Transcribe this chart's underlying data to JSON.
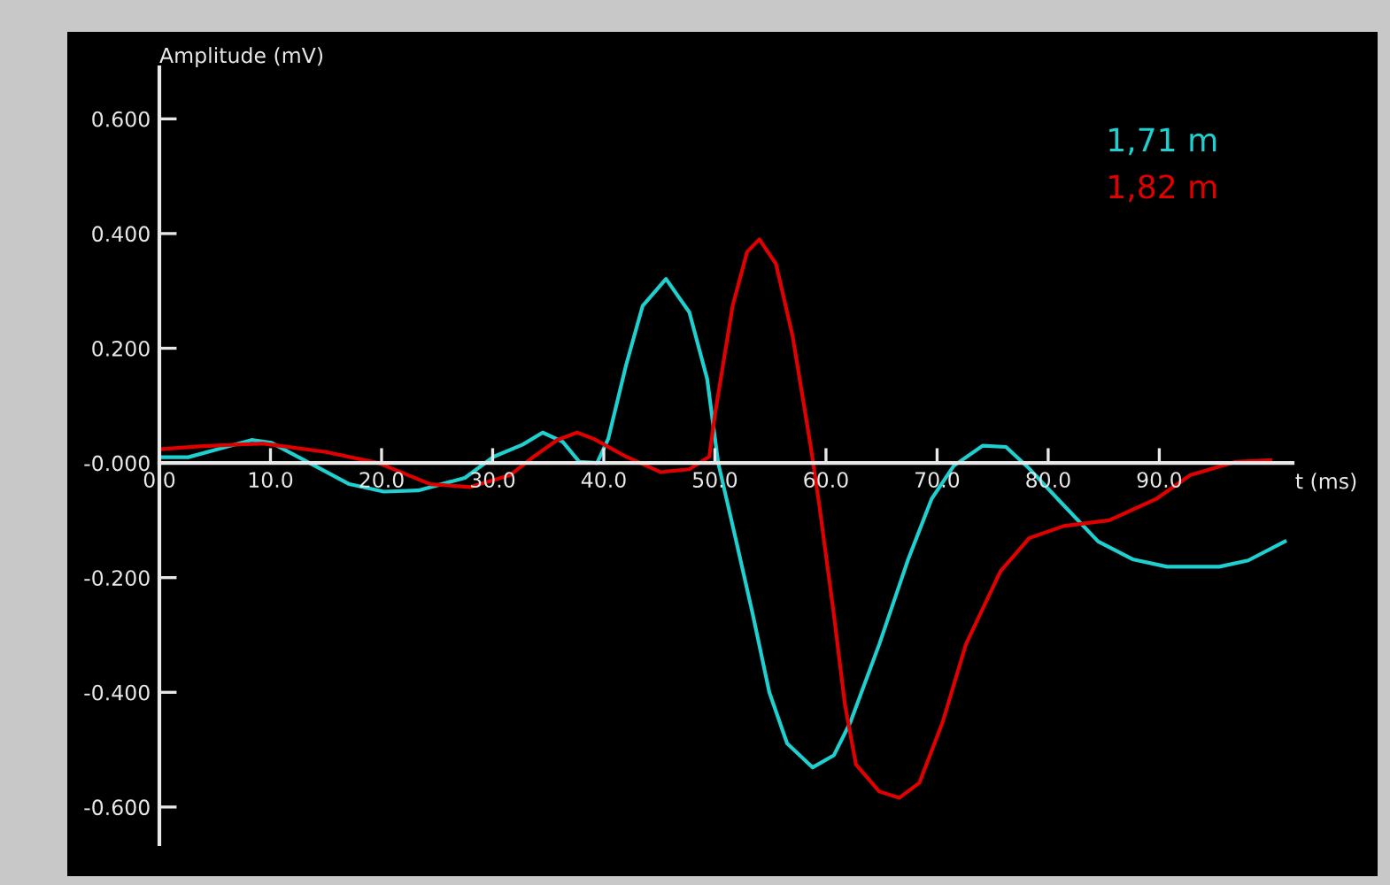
{
  "chart_data": {
    "type": "line",
    "ylabel": "Amplitude (mV)",
    "xlabel": "t (ms)",
    "xlim": [
      0,
      102
    ],
    "ylim": [
      -0.665,
      0.69
    ],
    "xticks": [
      {
        "value": 0,
        "label": "0.0"
      },
      {
        "value": 10,
        "label": "10.0"
      },
      {
        "value": 20,
        "label": "20.0"
      },
      {
        "value": 30,
        "label": "30.0"
      },
      {
        "value": 40,
        "label": "40.0"
      },
      {
        "value": 50,
        "label": "50.0"
      },
      {
        "value": 60,
        "label": "60.0"
      },
      {
        "value": 70,
        "label": "70.0"
      },
      {
        "value": 80,
        "label": "80.0"
      },
      {
        "value": 90,
        "label": "90.0"
      }
    ],
    "yticks": [
      {
        "value": 0.6,
        "label": "0.600"
      },
      {
        "value": 0.4,
        "label": "0.400"
      },
      {
        "value": 0.2,
        "label": "0.200"
      },
      {
        "value": 0,
        "label": "-0.000"
      },
      {
        "value": -0.2,
        "label": "-0.200"
      },
      {
        "value": -0.4,
        "label": "-0.400"
      },
      {
        "value": -0.6,
        "label": "-0.600"
      }
    ],
    "grid": false,
    "legend": "top right",
    "marker": "none",
    "line_style": "solid",
    "series": [
      {
        "name": "1,71 m",
        "color": "#1fd0d0",
        "x": [
          0,
          2.6,
          8.3,
          10.1,
          14,
          17.1,
          20.2,
          23.3,
          27.5,
          30.1,
          32.7,
          34.5,
          36.3,
          37.8,
          39.4,
          40.4,
          42.0,
          43.5,
          45.6,
          47.7,
          49.3,
          50.3,
          51.8,
          53.4,
          54.9,
          56.5,
          58.8,
          60.7,
          62.2,
          64.8,
          67.4,
          69.5,
          71.5,
          74.1,
          76.2,
          78.3,
          81.4,
          84.5,
          87.6,
          90.7,
          95.4,
          98.0,
          101.3
        ],
        "values": [
          0.01,
          0.01,
          0.04,
          0.035,
          -0.005,
          -0.037,
          -0.05,
          -0.048,
          -0.026,
          0.011,
          0.032,
          0.053,
          0.037,
          0.002,
          0.0,
          0.042,
          0.17,
          0.274,
          0.321,
          0.263,
          0.147,
          0.0,
          -0.126,
          -0.263,
          -0.4,
          -0.489,
          -0.531,
          -0.51,
          -0.452,
          -0.316,
          -0.168,
          -0.063,
          -0.005,
          0.03,
          0.028,
          -0.01,
          -0.074,
          -0.137,
          -0.168,
          -0.181,
          -0.181,
          -0.17,
          -0.137
        ]
      },
      {
        "name": "1,82 m",
        "color": "#e00000",
        "x": [
          0,
          3.6,
          9.3,
          15,
          19.7,
          24.4,
          28,
          31.6,
          33.7,
          35.8,
          37.6,
          39.1,
          42,
          45.1,
          47.7,
          49.5,
          50.0,
          51.6,
          52.9,
          54.0,
          55.5,
          57.0,
          58.6,
          59.4,
          60.7,
          61.7,
          62.7,
          64.8,
          66.6,
          68.4,
          70.5,
          72.6,
          75.7,
          78.3,
          81.4,
          85.5,
          89.7,
          92.8,
          96.9,
          100.0
        ],
        "values": [
          0.024,
          0.029,
          0.034,
          0.019,
          0.0,
          -0.037,
          -0.042,
          -0.021,
          0.011,
          0.04,
          0.053,
          0.042,
          0.011,
          -0.016,
          -0.011,
          0.011,
          0.084,
          0.274,
          0.368,
          0.39,
          0.347,
          0.221,
          0.032,
          -0.074,
          -0.263,
          -0.421,
          -0.526,
          -0.573,
          -0.584,
          -0.558,
          -0.452,
          -0.316,
          -0.189,
          -0.131,
          -0.11,
          -0.1,
          -0.063,
          -0.021,
          0.002,
          0.005
        ]
      }
    ]
  }
}
